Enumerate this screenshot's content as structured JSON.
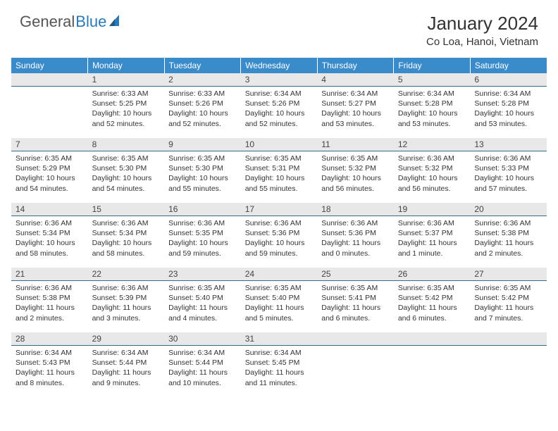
{
  "brand": {
    "part1": "General",
    "part2": "Blue"
  },
  "title": {
    "month": "January 2024",
    "location": "Co Loa, Hanoi, Vietnam"
  },
  "colors": {
    "header_bg": "#3a8bc9",
    "header_text": "#ffffff",
    "daynum_bg": "#e8e8e8",
    "daynum_border": "#3a6a8a",
    "body_text": "#333333",
    "brand_accent": "#2a7ab9"
  },
  "weekdays": [
    "Sunday",
    "Monday",
    "Tuesday",
    "Wednesday",
    "Thursday",
    "Friday",
    "Saturday"
  ],
  "start_offset": 1,
  "days": [
    {
      "n": "1",
      "sunrise": "6:33 AM",
      "sunset": "5:25 PM",
      "daylight": "10 hours and 52 minutes."
    },
    {
      "n": "2",
      "sunrise": "6:33 AM",
      "sunset": "5:26 PM",
      "daylight": "10 hours and 52 minutes."
    },
    {
      "n": "3",
      "sunrise": "6:34 AM",
      "sunset": "5:26 PM",
      "daylight": "10 hours and 52 minutes."
    },
    {
      "n": "4",
      "sunrise": "6:34 AM",
      "sunset": "5:27 PM",
      "daylight": "10 hours and 53 minutes."
    },
    {
      "n": "5",
      "sunrise": "6:34 AM",
      "sunset": "5:28 PM",
      "daylight": "10 hours and 53 minutes."
    },
    {
      "n": "6",
      "sunrise": "6:34 AM",
      "sunset": "5:28 PM",
      "daylight": "10 hours and 53 minutes."
    },
    {
      "n": "7",
      "sunrise": "6:35 AM",
      "sunset": "5:29 PM",
      "daylight": "10 hours and 54 minutes."
    },
    {
      "n": "8",
      "sunrise": "6:35 AM",
      "sunset": "5:30 PM",
      "daylight": "10 hours and 54 minutes."
    },
    {
      "n": "9",
      "sunrise": "6:35 AM",
      "sunset": "5:30 PM",
      "daylight": "10 hours and 55 minutes."
    },
    {
      "n": "10",
      "sunrise": "6:35 AM",
      "sunset": "5:31 PM",
      "daylight": "10 hours and 55 minutes."
    },
    {
      "n": "11",
      "sunrise": "6:35 AM",
      "sunset": "5:32 PM",
      "daylight": "10 hours and 56 minutes."
    },
    {
      "n": "12",
      "sunrise": "6:36 AM",
      "sunset": "5:32 PM",
      "daylight": "10 hours and 56 minutes."
    },
    {
      "n": "13",
      "sunrise": "6:36 AM",
      "sunset": "5:33 PM",
      "daylight": "10 hours and 57 minutes."
    },
    {
      "n": "14",
      "sunrise": "6:36 AM",
      "sunset": "5:34 PM",
      "daylight": "10 hours and 58 minutes."
    },
    {
      "n": "15",
      "sunrise": "6:36 AM",
      "sunset": "5:34 PM",
      "daylight": "10 hours and 58 minutes."
    },
    {
      "n": "16",
      "sunrise": "6:36 AM",
      "sunset": "5:35 PM",
      "daylight": "10 hours and 59 minutes."
    },
    {
      "n": "17",
      "sunrise": "6:36 AM",
      "sunset": "5:36 PM",
      "daylight": "10 hours and 59 minutes."
    },
    {
      "n": "18",
      "sunrise": "6:36 AM",
      "sunset": "5:36 PM",
      "daylight": "11 hours and 0 minutes."
    },
    {
      "n": "19",
      "sunrise": "6:36 AM",
      "sunset": "5:37 PM",
      "daylight": "11 hours and 1 minute."
    },
    {
      "n": "20",
      "sunrise": "6:36 AM",
      "sunset": "5:38 PM",
      "daylight": "11 hours and 2 minutes."
    },
    {
      "n": "21",
      "sunrise": "6:36 AM",
      "sunset": "5:38 PM",
      "daylight": "11 hours and 2 minutes."
    },
    {
      "n": "22",
      "sunrise": "6:36 AM",
      "sunset": "5:39 PM",
      "daylight": "11 hours and 3 minutes."
    },
    {
      "n": "23",
      "sunrise": "6:35 AM",
      "sunset": "5:40 PM",
      "daylight": "11 hours and 4 minutes."
    },
    {
      "n": "24",
      "sunrise": "6:35 AM",
      "sunset": "5:40 PM",
      "daylight": "11 hours and 5 minutes."
    },
    {
      "n": "25",
      "sunrise": "6:35 AM",
      "sunset": "5:41 PM",
      "daylight": "11 hours and 6 minutes."
    },
    {
      "n": "26",
      "sunrise": "6:35 AM",
      "sunset": "5:42 PM",
      "daylight": "11 hours and 6 minutes."
    },
    {
      "n": "27",
      "sunrise": "6:35 AM",
      "sunset": "5:42 PM",
      "daylight": "11 hours and 7 minutes."
    },
    {
      "n": "28",
      "sunrise": "6:34 AM",
      "sunset": "5:43 PM",
      "daylight": "11 hours and 8 minutes."
    },
    {
      "n": "29",
      "sunrise": "6:34 AM",
      "sunset": "5:44 PM",
      "daylight": "11 hours and 9 minutes."
    },
    {
      "n": "30",
      "sunrise": "6:34 AM",
      "sunset": "5:44 PM",
      "daylight": "11 hours and 10 minutes."
    },
    {
      "n": "31",
      "sunrise": "6:34 AM",
      "sunset": "5:45 PM",
      "daylight": "11 hours and 11 minutes."
    }
  ],
  "labels": {
    "sunrise": "Sunrise:",
    "sunset": "Sunset:",
    "daylight": "Daylight:"
  }
}
